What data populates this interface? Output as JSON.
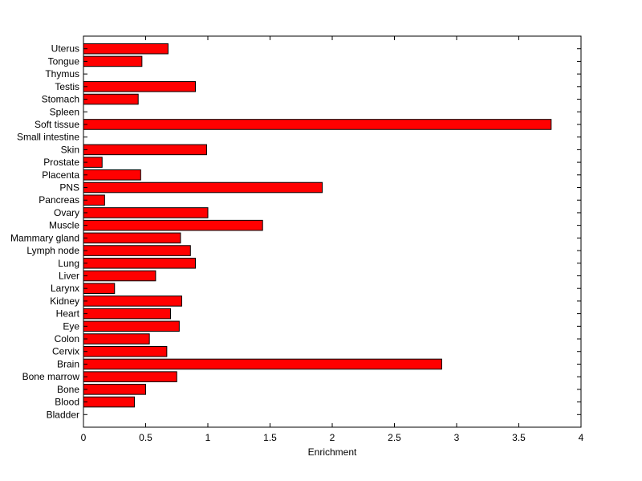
{
  "chart_data": {
    "type": "bar",
    "orientation": "horizontal",
    "title": "",
    "xlabel": "Enrichment",
    "ylabel": "",
    "xlim": [
      0,
      4
    ],
    "xticks": [
      0,
      0.5,
      1,
      1.5,
      2,
      2.5,
      3,
      3.5,
      4
    ],
    "xtick_labels": [
      "0",
      "0.5",
      "1",
      "1.5",
      "2",
      "2.5",
      "3",
      "3.5",
      "4"
    ],
    "grid": false,
    "legend": "none",
    "bar_color": "#ff0000",
    "bar_edge_color": "#000000",
    "categories": [
      "Bladder",
      "Blood",
      "Bone",
      "Bone marrow",
      "Brain",
      "Cervix",
      "Colon",
      "Eye",
      "Heart",
      "Kidney",
      "Larynx",
      "Liver",
      "Lung",
      "Lymph node",
      "Mammary gland",
      "Muscle",
      "Ovary",
      "Pancreas",
      "PNS",
      "Placenta",
      "Prostate",
      "Skin",
      "Small intestine",
      "Soft tissue",
      "Spleen",
      "Stomach",
      "Testis",
      "Thymus",
      "Tongue",
      "Uterus"
    ],
    "values": [
      0,
      0.41,
      0.5,
      0.75,
      2.88,
      0.67,
      0.53,
      0.77,
      0.7,
      0.79,
      0.25,
      0.58,
      0.9,
      0.86,
      0.78,
      1.44,
      1.0,
      0.17,
      1.92,
      0.46,
      0.15,
      0.99,
      0,
      3.76,
      0,
      0.44,
      0.9,
      0,
      0.47,
      0.68
    ]
  }
}
